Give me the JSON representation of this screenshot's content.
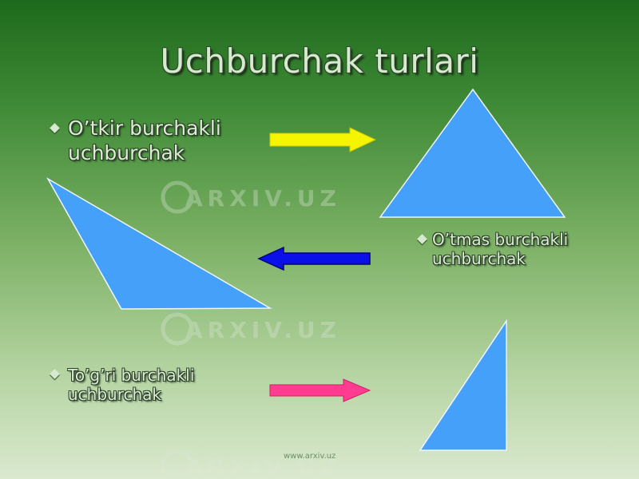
{
  "slide": {
    "title": "Uchburchak turlari",
    "bullets": [
      {
        "text": "O’tkir burchakli uchburchak"
      },
      {
        "text": "O’tmas burchakli uchburchak"
      },
      {
        "text": "To’g’ri burchakli uchburchak"
      }
    ],
    "watermark": "ARXIV.UZ",
    "footer": "www.arxiv.uz"
  },
  "colors": {
    "triangle_fill": "#44a0f8",
    "triangle_stroke": "#f0f4ff",
    "arrow_yellow": "#f5f500",
    "arrow_blue": "#0a10e8",
    "arrow_pink": "#ff3c90"
  }
}
